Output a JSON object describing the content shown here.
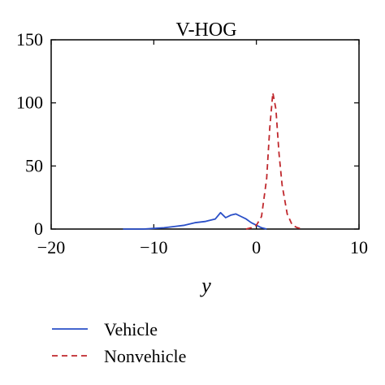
{
  "chart_data": {
    "type": "line",
    "title": "V-HOG",
    "xlabel": "y",
    "ylabel": "",
    "xlim": [
      -20,
      10
    ],
    "ylim": [
      0,
      150
    ],
    "xticks": [
      -20,
      -10,
      0,
      10
    ],
    "yticks": [
      0,
      50,
      100,
      150
    ],
    "xtick_labels": [
      "−20",
      "−10",
      "0",
      "10"
    ],
    "ytick_labels": [
      "0",
      "50",
      "100",
      "150"
    ],
    "grid": false,
    "legend_position": "bottom-left",
    "series": [
      {
        "name": "Vehicle",
        "color": "#2a4fc7",
        "dash": "solid",
        "x": [
          -13,
          -12,
          -11,
          -10,
          -9,
          -8,
          -7,
          -6,
          -5,
          -4,
          -3.5,
          -3,
          -2.5,
          -2,
          -1.5,
          -1,
          -0.5,
          0,
          0.5,
          1
        ],
        "y": [
          0,
          0,
          0,
          0.5,
          1,
          2,
          3,
          5,
          6,
          8,
          13,
          9,
          11,
          12,
          10,
          8,
          5,
          3,
          1,
          0
        ]
      },
      {
        "name": "Nonvehicle",
        "color": "#c0282d",
        "dash": "dashed",
        "x": [
          -1,
          -0.5,
          0,
          0.5,
          1,
          1.3,
          1.6,
          1.9,
          2.2,
          2.5,
          3,
          3.5,
          4,
          4.5
        ],
        "y": [
          0,
          1,
          3,
          10,
          40,
          80,
          108,
          95,
          60,
          35,
          12,
          3,
          1,
          0
        ]
      }
    ]
  }
}
